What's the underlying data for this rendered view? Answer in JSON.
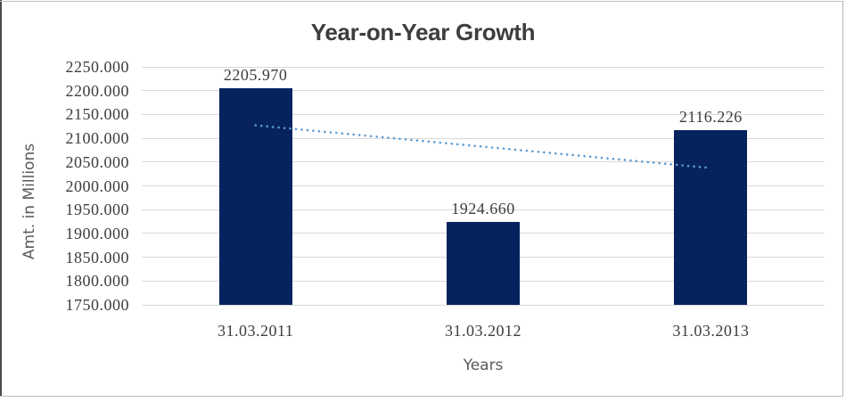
{
  "chart_data": {
    "type": "bar",
    "title": "Year-on-Year Growth",
    "xlabel": "Years",
    "ylabel": "Amt. in Millions",
    "categories": [
      "31.03.2011",
      "31.03.2012",
      "31.03.2013"
    ],
    "values": [
      2205.97,
      1924.66,
      2116.226
    ],
    "bar_labels": [
      "2205.970",
      "1924.660",
      "2116.226"
    ],
    "y_ticks": [
      "2250.000",
      "2200.000",
      "2150.000",
      "2100.000",
      "2050.000",
      "2000.000",
      "1950.000",
      "1900.000",
      "1850.000",
      "1800.000",
      "1750.000"
    ],
    "ylim": [
      1750,
      2250
    ],
    "grid": true,
    "legend": false,
    "trendline": {
      "type": "linear",
      "style": "dotted",
      "start_value": 2127.157,
      "end_value": 2037.413,
      "color": "#5B9BD5"
    },
    "colors": {
      "bar": "#06235E",
      "gridline": "#D9D9D9",
      "title_text": "#3D3D3D",
      "tick_text": "#3D3D3D",
      "axis_title_text": "#595959",
      "background": "#FFFFFF"
    }
  }
}
